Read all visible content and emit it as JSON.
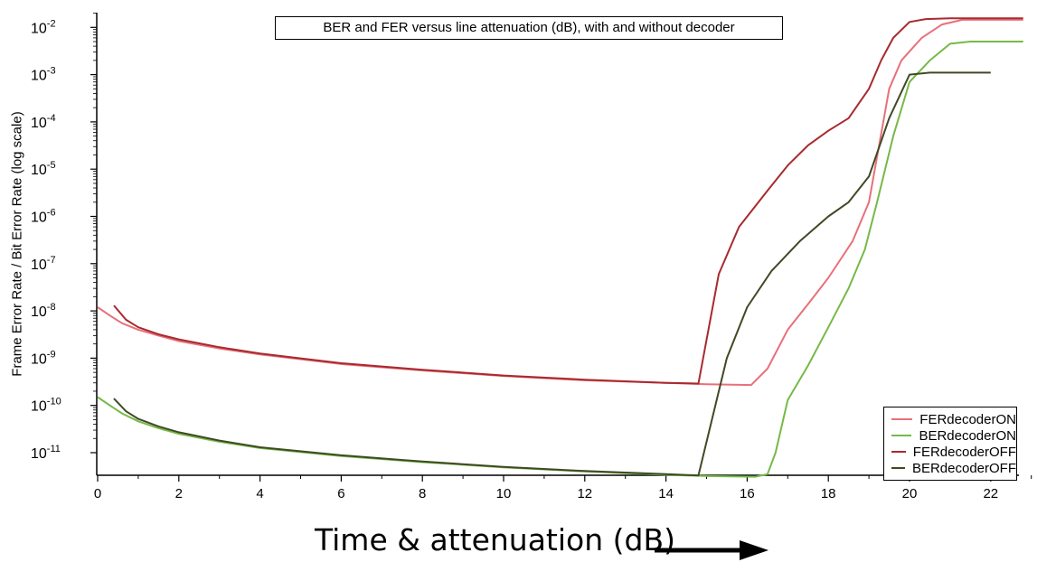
{
  "chart_data": {
    "type": "line",
    "title": "BER and FER versus line attenuation (dB), with and without decoder",
    "xlabel": "Time & attenuation (dB)",
    "ylabel": "Frame Error Rate / Bit Error Rate (log scale)",
    "y_scale": "log",
    "xlim": [
      0,
      23
    ],
    "ylim": [
      3e-12,
      0.012
    ],
    "x_ticks": [
      {
        "value": 0,
        "label": "0"
      },
      {
        "value": 2,
        "label": "2"
      },
      {
        "value": 4,
        "label": "4"
      },
      {
        "value": 6,
        "label": "6"
      },
      {
        "value": 8,
        "label": "8"
      },
      {
        "value": 10,
        "label": "10"
      },
      {
        "value": 12,
        "label": "12"
      },
      {
        "value": 14,
        "label": "14"
      },
      {
        "value": 16,
        "label": "16"
      },
      {
        "value": 18,
        "label": "18"
      },
      {
        "value": 20,
        "label": "20"
      },
      {
        "value": 22,
        "label": "22"
      }
    ],
    "y_ticks": [
      {
        "value": 1e-11,
        "base": "10",
        "exp": "-11"
      },
      {
        "value": 1e-10,
        "base": "10",
        "exp": "-10"
      },
      {
        "value": 1e-09,
        "base": "10",
        "exp": "-9"
      },
      {
        "value": 1e-08,
        "base": "10",
        "exp": "-8"
      },
      {
        "value": 1e-07,
        "base": "10",
        "exp": "-7"
      },
      {
        "value": 1e-06,
        "base": "10",
        "exp": "-6"
      },
      {
        "value": 1e-05,
        "base": "10",
        "exp": "-5"
      },
      {
        "value": 0.0001,
        "base": "10",
        "exp": "-4"
      },
      {
        "value": 0.001,
        "base": "10",
        "exp": "-3"
      },
      {
        "value": 0.01,
        "base": "10",
        "exp": "-2"
      }
    ],
    "grid": false,
    "legend_position": "bottom-right",
    "series": [
      {
        "name": "FERdecoderON",
        "color": "#e8707a",
        "points": [
          [
            0,
            1.2e-08
          ],
          [
            0.3,
            8e-09
          ],
          [
            0.6,
            5.5e-09
          ],
          [
            1,
            4e-09
          ],
          [
            1.5,
            3e-09
          ],
          [
            2,
            2.3e-09
          ],
          [
            3,
            1.6e-09
          ],
          [
            4,
            1.2e-09
          ],
          [
            6,
            7.5e-10
          ],
          [
            8,
            5.5e-10
          ],
          [
            10,
            4.2e-10
          ],
          [
            12,
            3.4e-10
          ],
          [
            14,
            3e-10
          ],
          [
            15,
            2.8e-10
          ],
          [
            16.1,
            2.7e-10
          ],
          [
            16.5,
            6e-10
          ],
          [
            17,
            4e-09
          ],
          [
            17.5,
            1.4e-08
          ],
          [
            18,
            5e-08
          ],
          [
            18.6,
            3e-07
          ],
          [
            19,
            2e-06
          ],
          [
            19.5,
            0.0005
          ],
          [
            19.8,
            0.002
          ],
          [
            20.3,
            0.006
          ],
          [
            20.8,
            0.0115
          ],
          [
            21.3,
            0.0145
          ],
          [
            22,
            0.0145
          ],
          [
            22.8,
            0.0145
          ]
        ]
      },
      {
        "name": "BERdecoderON",
        "color": "#76b947",
        "points": [
          [
            0,
            1.5e-10
          ],
          [
            0.3,
            1e-10
          ],
          [
            0.6,
            6.8e-11
          ],
          [
            1,
            4.6e-11
          ],
          [
            1.5,
            3.3e-11
          ],
          [
            2,
            2.5e-11
          ],
          [
            3,
            1.7e-11
          ],
          [
            4,
            1.25e-11
          ],
          [
            6,
            8.5e-12
          ],
          [
            8,
            6.3e-12
          ],
          [
            10,
            4.9e-12
          ],
          [
            12,
            4e-12
          ],
          [
            14,
            3.4e-12
          ],
          [
            15,
            3.2e-12
          ],
          [
            16.2,
            3.1e-12
          ],
          [
            16.5,
            3.5e-12
          ],
          [
            16.7,
            1e-11
          ],
          [
            17,
            1.3e-10
          ],
          [
            17.5,
            7e-10
          ],
          [
            18,
            4.5e-09
          ],
          [
            18.5,
            3e-08
          ],
          [
            18.9,
            2e-07
          ],
          [
            19.2,
            2e-06
          ],
          [
            19.6,
            5e-05
          ],
          [
            20,
            0.0007
          ],
          [
            20.5,
            0.002
          ],
          [
            21,
            0.0045
          ],
          [
            21.5,
            0.005
          ],
          [
            22.8,
            0.005
          ]
        ]
      },
      {
        "name": "FERdecoderOFF",
        "color": "#a82a2e",
        "points": [
          [
            0.4,
            1.3e-08
          ],
          [
            0.7,
            6.5e-09
          ],
          [
            1,
            4.5e-09
          ],
          [
            1.5,
            3.2e-09
          ],
          [
            2,
            2.5e-09
          ],
          [
            3,
            1.7e-09
          ],
          [
            4,
            1.25e-09
          ],
          [
            6,
            7.8e-10
          ],
          [
            8,
            5.7e-10
          ],
          [
            10,
            4.3e-10
          ],
          [
            12,
            3.5e-10
          ],
          [
            14,
            3e-10
          ],
          [
            14.8,
            2.9e-10
          ],
          [
            15.3,
            6e-08
          ],
          [
            15.8,
            6e-07
          ],
          [
            16.5,
            3.5e-06
          ],
          [
            17,
            1.2e-05
          ],
          [
            17.5,
            3.2e-05
          ],
          [
            18,
            6.5e-05
          ],
          [
            18.5,
            0.00012
          ],
          [
            19,
            0.0005
          ],
          [
            19.3,
            0.002
          ],
          [
            19.6,
            0.006
          ],
          [
            20,
            0.013
          ],
          [
            20.4,
            0.015
          ],
          [
            21,
            0.0155
          ],
          [
            22,
            0.0155
          ],
          [
            22.8,
            0.0155
          ]
        ]
      },
      {
        "name": "BERdecoderOFF",
        "color": "#3f4a25",
        "points": [
          [
            0.4,
            1.4e-10
          ],
          [
            0.7,
            7.5e-11
          ],
          [
            1,
            5.2e-11
          ],
          [
            1.5,
            3.6e-11
          ],
          [
            2,
            2.7e-11
          ],
          [
            3,
            1.8e-11
          ],
          [
            4,
            1.3e-11
          ],
          [
            6,
            8.8e-12
          ],
          [
            8,
            6.5e-12
          ],
          [
            10,
            5e-12
          ],
          [
            12,
            4.1e-12
          ],
          [
            14,
            3.5e-12
          ],
          [
            14.8,
            3.3e-12
          ],
          [
            15.5,
            1e-09
          ],
          [
            16,
            1.2e-08
          ],
          [
            16.6,
            7e-08
          ],
          [
            17.3,
            3e-07
          ],
          [
            18,
            1e-06
          ],
          [
            18.5,
            2e-06
          ],
          [
            19,
            7e-06
          ],
          [
            19.5,
            0.00012
          ],
          [
            20,
            0.001
          ],
          [
            20.5,
            0.0011
          ],
          [
            21,
            0.0011
          ],
          [
            22,
            0.0011
          ]
        ]
      }
    ]
  }
}
